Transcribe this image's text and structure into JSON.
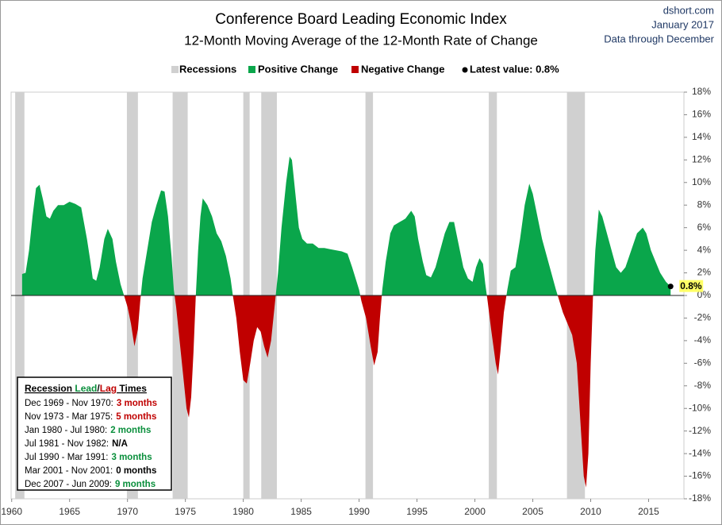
{
  "chart_data": {
    "type": "area",
    "title": "Conference Board Leading Economic Index",
    "subtitle": "12-Month Moving Average of the 12-Month Rate of Change",
    "source": [
      "dshort.com",
      "January 2017",
      "Data through December"
    ],
    "legend": [
      {
        "name": "Recessions",
        "color": "#d0d0d0",
        "text_color": "#a0a0a0"
      },
      {
        "name": "Positive Change",
        "color": "#0aa64b",
        "text_color": "#0aa64b"
      },
      {
        "name": "Negative Change",
        "color": "#c00000",
        "text_color": "#c00000"
      },
      {
        "name": "Latest value: 0.8%",
        "color": "#000000",
        "text_color": "#000000"
      }
    ],
    "positive_color": "#0aa64b",
    "negative_color": "#c00000",
    "recession_color": "#d0d0d0",
    "recessions": [
      {
        "start": 1960.3,
        "end": 1961.1
      },
      {
        "start": 1969.95,
        "end": 1970.9
      },
      {
        "start": 1973.9,
        "end": 1975.2
      },
      {
        "start": 1980.0,
        "end": 1980.55
      },
      {
        "start": 1981.55,
        "end": 1982.9
      },
      {
        "start": 1990.55,
        "end": 1991.2
      },
      {
        "start": 2001.2,
        "end": 2001.9
      },
      {
        "start": 2007.95,
        "end": 2009.5
      }
    ],
    "x": [
      1960.9,
      1961.2,
      1961.5,
      1961.8,
      1962.1,
      1962.4,
      1962.7,
      1963.0,
      1963.3,
      1963.6,
      1964.0,
      1964.5,
      1965.0,
      1965.5,
      1966.0,
      1966.5,
      1966.8,
      1967.0,
      1967.3,
      1967.6,
      1968.0,
      1968.3,
      1968.7,
      1969.0,
      1969.4,
      1969.7,
      1970.0,
      1970.3,
      1970.6,
      1970.9,
      1971.1,
      1971.3,
      1971.7,
      1972.1,
      1972.5,
      1972.9,
      1973.2,
      1973.5,
      1973.8,
      1974.0,
      1974.2,
      1974.5,
      1974.8,
      1975.1,
      1975.3,
      1975.5,
      1975.7,
      1975.9,
      1976.1,
      1976.3,
      1976.5,
      1976.9,
      1977.3,
      1977.7,
      1978.1,
      1978.5,
      1978.9,
      1979.1,
      1979.4,
      1979.7,
      1980.0,
      1980.3,
      1980.6,
      1980.9,
      1981.2,
      1981.5,
      1981.8,
      1982.1,
      1982.4,
      1982.7,
      1983.0,
      1983.3,
      1983.7,
      1984.0,
      1984.2,
      1984.5,
      1984.8,
      1985.1,
      1985.5,
      1986.0,
      1986.5,
      1987.0,
      1987.5,
      1988.0,
      1988.5,
      1989.0,
      1989.4,
      1989.7,
      1990.0,
      1990.2,
      1990.6,
      1991.0,
      1991.3,
      1991.6,
      1991.8,
      1992.0,
      1992.3,
      1992.7,
      1993.0,
      1993.5,
      1994.0,
      1994.5,
      1994.8,
      1995.1,
      1995.5,
      1995.8,
      1996.2,
      1996.6,
      1997.0,
      1997.4,
      1997.8,
      1998.2,
      1998.6,
      1999.0,
      1999.4,
      1999.8,
      2000.1,
      2000.4,
      2000.7,
      2000.9,
      2001.1,
      2001.4,
      2001.8,
      2002.0,
      2002.2,
      2002.5,
      2002.8,
      2003.1,
      2003.5,
      2003.9,
      2004.3,
      2004.7,
      2005.0,
      2005.4,
      2005.8,
      2006.2,
      2006.6,
      2007.0,
      2007.3,
      2007.6,
      2008.0,
      2008.4,
      2008.8,
      2009.1,
      2009.4,
      2009.6,
      2009.8,
      2010.0,
      2010.2,
      2010.4,
      2010.7,
      2011.0,
      2011.4,
      2011.8,
      2012.2,
      2012.6,
      2013.0,
      2013.5,
      2014.0,
      2014.5,
      2014.8,
      2015.2,
      2015.6,
      2016.0,
      2016.5,
      2016.9
    ],
    "values": [
      1.9,
      2.0,
      4,
      7,
      9.5,
      9.8,
      8.5,
      7,
      6.8,
      7.5,
      8,
      8,
      8.3,
      8.1,
      7.8,
      5,
      3,
      1.5,
      1.3,
      2.5,
      5,
      5.9,
      5,
      3,
      1,
      0,
      -1,
      -2.5,
      -4.5,
      -3,
      -0.5,
      1.5,
      4,
      6.5,
      8,
      9.3,
      9.2,
      7,
      3.5,
      0.5,
      -1,
      -4,
      -7,
      -10,
      -10.8,
      -9,
      -5,
      0,
      4,
      7,
      8.6,
      8,
      7,
      5.5,
      4.8,
      3.5,
      1.5,
      0,
      -2,
      -5,
      -7.5,
      -7.8,
      -6,
      -4,
      -2.8,
      -3.2,
      -4.5,
      -5.5,
      -4,
      -1,
      2,
      6,
      10,
      12.3,
      12,
      9,
      6,
      5,
      4.6,
      4.6,
      4.2,
      4.2,
      4.1,
      4.0,
      3.9,
      3.7,
      2.5,
      1.5,
      0.5,
      -0.5,
      -2,
      -4.5,
      -6.2,
      -5,
      -2,
      0.5,
      3,
      5.5,
      6.2,
      6.5,
      6.8,
      7.5,
      7,
      5,
      3,
      1.8,
      1.6,
      2.5,
      4,
      5.5,
      6.5,
      6.5,
      4.5,
      2.5,
      1.5,
      1.2,
      2.5,
      3.3,
      2.8,
      1,
      -0.5,
      -3,
      -6,
      -7,
      -5,
      -1.5,
      0.5,
      2.2,
      2.5,
      5,
      8,
      9.9,
      9,
      7,
      5,
      3.5,
      2,
      0.5,
      -0.5,
      -1.5,
      -2.5,
      -3.5,
      -6,
      -11,
      -16,
      -17,
      -14,
      -6,
      0,
      4,
      7.6,
      7,
      5.5,
      4,
      2.5,
      2,
      2.5,
      4,
      5.5,
      6,
      5.5,
      4,
      3,
      2,
      1.2,
      0.8
    ],
    "latest": {
      "x": 2016.9,
      "value": 0.8,
      "value_label": "0.8%"
    },
    "xlim": [
      1959.95,
      2018.05
    ],
    "ylim": [
      -18,
      18
    ],
    "xticks": [
      1960,
      1965,
      1970,
      1975,
      1980,
      1985,
      1990,
      1995,
      2000,
      2005,
      2010,
      2015
    ],
    "yticks": [
      {
        "value": 18,
        "label": "18%"
      },
      {
        "value": 16,
        "label": "16%"
      },
      {
        "value": 14,
        "label": "14%"
      },
      {
        "value": 12,
        "label": "12%"
      },
      {
        "value": 10,
        "label": "10%"
      },
      {
        "value": 8,
        "label": "8%"
      },
      {
        "value": 6,
        "label": "6%"
      },
      {
        "value": 4,
        "label": "4%"
      },
      {
        "value": 2,
        "label": "2%"
      },
      {
        "value": 0,
        "label": "0%"
      },
      {
        "value": -2,
        "label": "-2%"
      },
      {
        "value": -4,
        "label": "-4%"
      },
      {
        "value": -6,
        "label": "-6%"
      },
      {
        "value": -8,
        "label": "-8%"
      },
      {
        "value": -10,
        "label": "-10%"
      },
      {
        "value": -12,
        "label": "-12%"
      },
      {
        "value": -14,
        "label": "-14%"
      },
      {
        "value": -16,
        "label": "-16%"
      },
      {
        "value": -18,
        "label": "-18%"
      }
    ],
    "box_title": [
      {
        "text": "Recession ",
        "color": "#000000"
      },
      {
        "text": "Lead",
        "color": "#0a8f3c"
      },
      {
        "text": "/",
        "color": "#000000"
      },
      {
        "text": "Lag",
        "color": "#c00000"
      },
      {
        "text": " Times",
        "color": "#000000"
      }
    ],
    "box_rows": [
      {
        "period": "Dec 1969 - Nov 1970:",
        "lead": "3 months",
        "color": "#c00000"
      },
      {
        "period": "Nov 1973 - Mar 1975:",
        "lead": "5 months",
        "color": "#c00000"
      },
      {
        "period": "Jan 1980 - Jul 1980:",
        "lead": "2 months",
        "color": "#0a8f3c"
      },
      {
        "period": "Jul 1981 - Nov 1982:",
        "lead": "N/A",
        "color": "#000000"
      },
      {
        "period": "Jul 1990 - Mar 1991:",
        "lead": "3 months",
        "color": "#0a8f3c"
      },
      {
        "period": "Mar 2001 - Nov 2001:",
        "lead": "0 months",
        "color": "#000000"
      },
      {
        "period": "Dec 2007 - Jun 2009:",
        "lead": "9 months",
        "color": "#0a8f3c"
      }
    ]
  }
}
